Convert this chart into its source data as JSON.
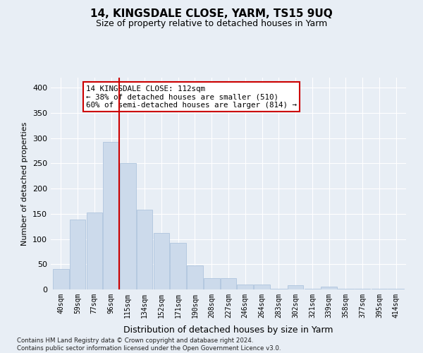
{
  "title": "14, KINGSDALE CLOSE, YARM, TS15 9UQ",
  "subtitle": "Size of property relative to detached houses in Yarm",
  "xlabel": "Distribution of detached houses by size in Yarm",
  "ylabel": "Number of detached properties",
  "bar_labels": [
    "40sqm",
    "59sqm",
    "77sqm",
    "96sqm",
    "115sqm",
    "134sqm",
    "152sqm",
    "171sqm",
    "190sqm",
    "208sqm",
    "227sqm",
    "246sqm",
    "264sqm",
    "283sqm",
    "302sqm",
    "321sqm",
    "339sqm",
    "358sqm",
    "377sqm",
    "395sqm",
    "414sqm"
  ],
  "bar_heights": [
    40,
    138,
    153,
    292,
    250,
    158,
    112,
    93,
    47,
    22,
    22,
    10,
    10,
    1,
    8,
    1,
    5,
    1,
    2,
    1,
    2
  ],
  "bar_color": "#ccdaeb",
  "bar_edge_color": "#afc5de",
  "vline_x": 3.5,
  "vline_color": "#cc0000",
  "annotation_text": "14 KINGSDALE CLOSE: 112sqm\n← 38% of detached houses are smaller (510)\n60% of semi-detached houses are larger (814) →",
  "annotation_box_color": "#ffffff",
  "annotation_box_edge": "#cc0000",
  "ylim": [
    0,
    420
  ],
  "yticks": [
    0,
    50,
    100,
    150,
    200,
    250,
    300,
    350,
    400
  ],
  "background_color": "#e8eef5",
  "grid_color": "#ffffff",
  "footer": "Contains HM Land Registry data © Crown copyright and database right 2024.\nContains public sector information licensed under the Open Government Licence v3.0."
}
